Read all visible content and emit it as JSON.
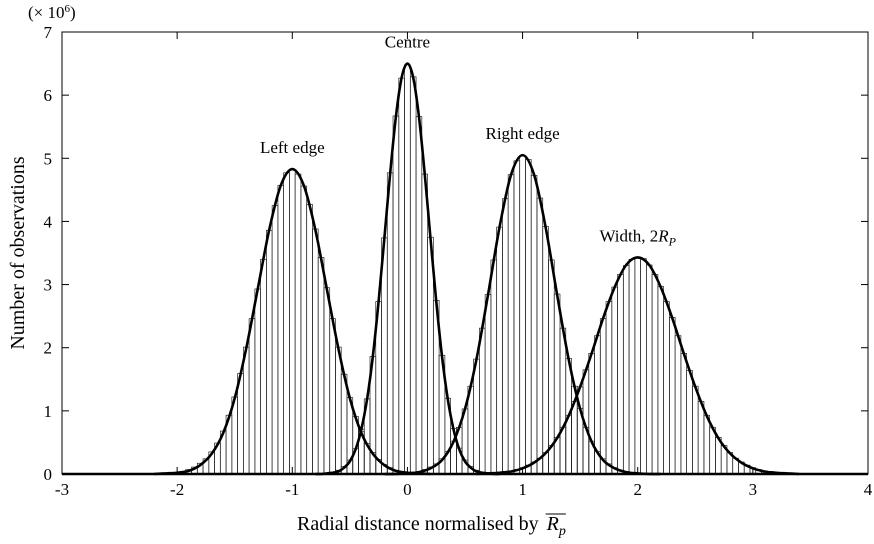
{
  "chart_data": {
    "type": "histogram",
    "y_multiplier": {
      "text": "(× 10",
      "sup": "6",
      "close": ")"
    },
    "ylabel": "Number of observations",
    "xlabel": {
      "text": "Radial distance normalised by",
      "symbol": "R",
      "sub": "p"
    },
    "xlim": [
      -3,
      4
    ],
    "xticks": [
      -3,
      -2,
      -1,
      0,
      1,
      2,
      3,
      4
    ],
    "ylim": [
      0,
      7
    ],
    "yticks": [
      0,
      1,
      2,
      3,
      4,
      5,
      6,
      7
    ],
    "bar_color": "#222222",
    "curve_color": "#000000",
    "series": [
      {
        "bins": [
          -2.075,
          -2.025,
          -1.975,
          -1.925,
          -1.875,
          -1.825,
          -1.775,
          -1.725,
          -1.675,
          -1.625,
          -1.575,
          -1.525,
          -1.475,
          -1.425,
          -1.375,
          -1.325,
          -1.275,
          -1.225,
          -1.175,
          -1.125,
          -1.075,
          -1.025,
          -0.975,
          -0.925,
          -0.875,
          -0.825,
          -0.775,
          -0.725,
          -0.675,
          -0.625,
          -0.575,
          -0.525,
          -0.475,
          -0.425,
          -0.375,
          -0.325,
          -0.275,
          -0.225,
          -0.175,
          -0.125,
          -0.075,
          -0.025,
          0.025,
          0.075
        ],
        "values": [
          0.01,
          0.02,
          0.04,
          0.07,
          0.11,
          0.17,
          0.24,
          0.35,
          0.49,
          0.68,
          0.93,
          1.22,
          1.59,
          2.01,
          2.46,
          2.93,
          3.4,
          3.86,
          4.25,
          4.57,
          4.77,
          4.82,
          4.75,
          4.56,
          4.27,
          3.88,
          3.43,
          2.95,
          2.46,
          2.01,
          1.58,
          1.21,
          0.91,
          0.67,
          0.48,
          0.34,
          0.23,
          0.15,
          0.1,
          0.06,
          0.04,
          0.02,
          0.01
        ]
      },
      {
        "bins": [
          -0.675,
          -0.625,
          -0.575,
          -0.525,
          -0.475,
          -0.425,
          -0.375,
          -0.325,
          -0.275,
          -0.225,
          -0.175,
          -0.125,
          -0.075,
          -0.025,
          0.025,
          0.075,
          0.125,
          0.175,
          0.225,
          0.275,
          0.325,
          0.375,
          0.425,
          0.475,
          0.525,
          0.575,
          0.625,
          0.675
        ],
        "values": [
          0.03,
          0.06,
          0.12,
          0.22,
          0.4,
          0.71,
          1.19,
          1.86,
          2.73,
          3.74,
          4.77,
          5.67,
          6.27,
          6.48,
          6.29,
          5.66,
          4.75,
          3.75,
          2.75,
          1.88,
          1.2,
          0.72,
          0.41,
          0.22,
          0.12,
          0.06,
          0.03
        ]
      },
      {
        "bins": [
          0.025,
          0.075,
          0.125,
          0.175,
          0.225,
          0.275,
          0.325,
          0.375,
          0.425,
          0.475,
          0.525,
          0.575,
          0.625,
          0.675,
          0.725,
          0.775,
          0.825,
          0.875,
          0.925,
          0.975,
          1.025,
          1.075,
          1.125,
          1.175,
          1.225,
          1.275,
          1.325,
          1.375,
          1.425,
          1.475,
          1.525,
          1.575,
          1.625,
          1.675,
          1.725,
          1.775,
          1.825,
          1.875,
          1.925,
          1.975
        ],
        "values": [
          0.03,
          0.04,
          0.07,
          0.11,
          0.16,
          0.24,
          0.36,
          0.52,
          0.74,
          1.03,
          1.39,
          1.82,
          2.31,
          2.84,
          3.39,
          3.91,
          4.36,
          4.74,
          4.96,
          5.04,
          4.98,
          4.73,
          4.37,
          3.92,
          3.39,
          2.85,
          2.31,
          1.83,
          1.39,
          1.04,
          0.74,
          0.52,
          0.36,
          0.24,
          0.16,
          0.1,
          0.06,
          0.04,
          0.02
        ]
      },
      {
        "bins": [
          0.775,
          0.825,
          0.875,
          0.925,
          0.975,
          1.025,
          1.075,
          1.125,
          1.175,
          1.225,
          1.275,
          1.325,
          1.375,
          1.425,
          1.475,
          1.525,
          1.575,
          1.625,
          1.675,
          1.725,
          1.775,
          1.825,
          1.875,
          1.925,
          1.975,
          2.025,
          2.075,
          2.125,
          2.175,
          2.225,
          2.275,
          2.325,
          2.375,
          2.425,
          2.475,
          2.525,
          2.575,
          2.625,
          2.675,
          2.725,
          2.775,
          2.825,
          2.875,
          2.925,
          2.975,
          3.025,
          3.075,
          3.125,
          3.175,
          3.225
        ],
        "values": [
          0.03,
          0.04,
          0.05,
          0.07,
          0.1,
          0.14,
          0.19,
          0.25,
          0.34,
          0.45,
          0.58,
          0.74,
          0.93,
          1.15,
          1.38,
          1.65,
          1.91,
          2.19,
          2.46,
          2.73,
          2.96,
          3.16,
          3.3,
          3.4,
          3.42,
          3.41,
          3.31,
          3.16,
          2.97,
          2.73,
          2.48,
          2.19,
          1.91,
          1.64,
          1.39,
          1.15,
          0.93,
          0.74,
          0.58,
          0.45,
          0.34,
          0.25,
          0.19,
          0.14,
          0.1,
          0.07,
          0.05,
          0.04,
          0.03
        ]
      }
    ],
    "curves": [
      {
        "name": "Left edge",
        "x": [
          -2.2,
          -2.1,
          -2.0,
          -1.9,
          -1.8,
          -1.7,
          -1.6,
          -1.5,
          -1.4,
          -1.3,
          -1.2,
          -1.1,
          -1.0,
          -0.9,
          -0.8,
          -0.7,
          -0.6,
          -0.5,
          -0.4,
          -0.3,
          -0.2,
          -0.1,
          0.0,
          0.1,
          0.2
        ],
        "values": [
          0.0,
          0.01,
          0.02,
          0.05,
          0.14,
          0.32,
          0.65,
          1.2,
          1.99,
          2.93,
          3.87,
          4.57,
          4.83,
          4.57,
          3.87,
          2.93,
          1.99,
          1.2,
          0.65,
          0.32,
          0.14,
          0.05,
          0.02,
          0.01,
          0.0
        ]
      },
      {
        "name": "Centre",
        "x": [
          -0.8,
          -0.75,
          -0.7,
          -0.65,
          -0.6,
          -0.55,
          -0.5,
          -0.45,
          -0.4,
          -0.35,
          -0.3,
          -0.25,
          -0.2,
          -0.15,
          -0.1,
          -0.05,
          0.0,
          0.05,
          0.1,
          0.15,
          0.2,
          0.25,
          0.3,
          0.35,
          0.4,
          0.45,
          0.5,
          0.55,
          0.6,
          0.65,
          0.7,
          0.75,
          0.8
        ],
        "values": [
          0.0,
          0.0,
          0.01,
          0.02,
          0.04,
          0.1,
          0.2,
          0.39,
          0.71,
          1.19,
          1.87,
          2.74,
          3.74,
          4.76,
          5.66,
          6.28,
          6.5,
          6.28,
          5.66,
          4.76,
          3.74,
          2.74,
          1.87,
          1.19,
          0.71,
          0.39,
          0.2,
          0.1,
          0.04,
          0.02,
          0.01,
          0.0,
          0.0
        ]
      },
      {
        "name": "Right edge",
        "x": [
          -0.2,
          -0.1,
          0.0,
          0.1,
          0.2,
          0.3,
          0.4,
          0.5,
          0.6,
          0.7,
          0.8,
          0.9,
          1.0,
          1.1,
          1.2,
          1.3,
          1.4,
          1.5,
          1.6,
          1.7,
          1.8,
          1.9,
          2.0,
          2.1,
          2.2
        ],
        "values": [
          0.0,
          0.0,
          0.01,
          0.03,
          0.09,
          0.22,
          0.51,
          1.03,
          1.82,
          2.84,
          3.91,
          4.74,
          5.05,
          4.74,
          3.91,
          2.84,
          1.82,
          1.03,
          0.51,
          0.22,
          0.09,
          0.03,
          0.01,
          0.0,
          0.0
        ]
      },
      {
        "name": {
          "text": "Width, 2",
          "symbol": "R",
          "sub": "P"
        },
        "x": [
          0.6,
          0.7,
          0.8,
          0.9,
          1.0,
          1.1,
          1.2,
          1.3,
          1.4,
          1.5,
          1.6,
          1.7,
          1.8,
          1.9,
          2.0,
          2.1,
          2.2,
          2.3,
          2.4,
          2.5,
          2.6,
          2.7,
          2.8,
          2.9,
          3.0,
          3.1,
          3.2,
          3.3,
          3.4
        ],
        "values": [
          0.0,
          0.01,
          0.02,
          0.04,
          0.09,
          0.18,
          0.33,
          0.57,
          0.92,
          1.38,
          1.91,
          2.47,
          2.96,
          3.31,
          3.43,
          3.31,
          2.96,
          2.47,
          1.91,
          1.38,
          0.92,
          0.57,
          0.33,
          0.18,
          0.09,
          0.04,
          0.02,
          0.01,
          0.0
        ]
      }
    ]
  }
}
